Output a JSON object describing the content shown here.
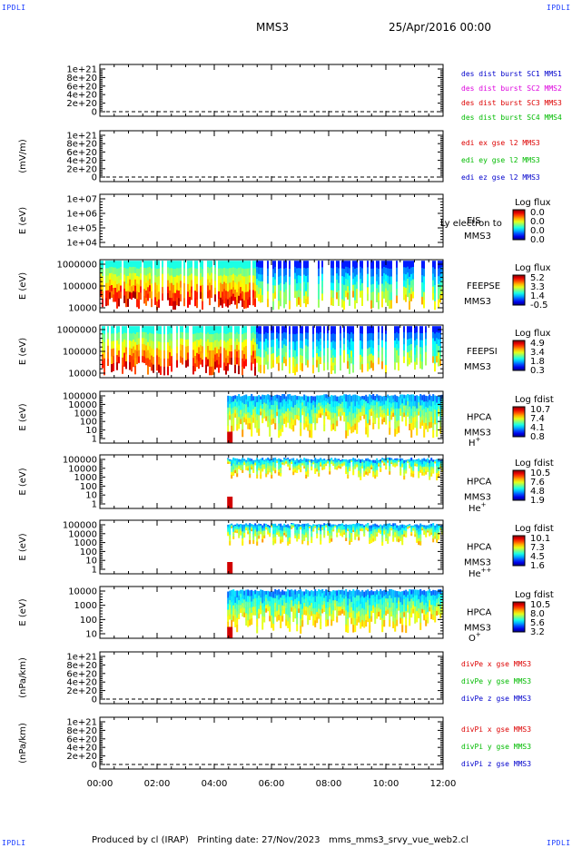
{
  "header": {
    "corner_label": "IPDLI",
    "mission": "MMS3",
    "date": "25/Apr/2016 00:00"
  },
  "footer": {
    "text": "Produced by cl (IRAP)   Printing date: 27/Nov/2023   mms_mms3_srvy_vue_web2.cl"
  },
  "colors": {
    "red": "#dd0000",
    "magenta": "#dd00dd",
    "green": "#00bb00",
    "blue": "#0000cc",
    "darkblue": "#000099"
  },
  "chart_data": [
    {
      "type": "line",
      "ylabel": "",
      "ticks": [
        "1e+21",
        "8e+20",
        "6e+20",
        "4e+20",
        "2e+20",
        "0"
      ],
      "legend": [
        {
          "text": "des dist burst SC1 MMS1",
          "color": "blue"
        },
        {
          "text": "des dist burst SC2 MMS2",
          "color": "magenta"
        },
        {
          "text": "des dist burst SC3 MMS3",
          "color": "red"
        },
        {
          "text": "des dist burst SC4 MMS4",
          "color": "green"
        }
      ]
    },
    {
      "type": "line",
      "ylabel": "(mV/m)",
      "ticks": [
        "1e+21",
        "8e+20",
        "6e+20",
        "4e+20",
        "2e+20",
        "0"
      ],
      "legend": [
        {
          "text": "edi ex gse l2 MMS3",
          "color": "red"
        },
        {
          "text": "edi ey gse l2 MMS3",
          "color": "green"
        },
        {
          "text": "edi ez gse l2 MMS3",
          "color": "blue"
        }
      ]
    },
    {
      "type": "heatmap",
      "ylabel": "E (eV)",
      "ticks": [
        "1e+07",
        "1e+06",
        "1e+05",
        "1e+04"
      ],
      "instrument": [
        "EIS",
        "MMS3"
      ],
      "overlay_text": "Ly electron to",
      "colorbar": {
        "title": "Log flux",
        "ticks": [
          "0.0",
          "0.0",
          "0.0",
          "0.0"
        ]
      },
      "onset_hour": 0,
      "empty": true
    },
    {
      "type": "heatmap",
      "ylabel": "E (eV)",
      "ticks": [
        "1000000",
        "100000",
        "10000"
      ],
      "instrument": [
        "FEEPSE",
        "MMS3"
      ],
      "colorbar": {
        "title": "Log flux",
        "ticks": [
          "5.2",
          "3.3",
          "1.4",
          "-0.5"
        ]
      },
      "onset_hour": 0,
      "empty": false
    },
    {
      "type": "heatmap",
      "ylabel": "E (eV)",
      "ticks": [
        "1000000",
        "100000",
        "10000"
      ],
      "instrument": [
        "FEEPSI",
        "MMS3"
      ],
      "colorbar": {
        "title": "Log flux",
        "ticks": [
          "4.9",
          "3.4",
          "1.8",
          "0.3"
        ]
      },
      "onset_hour": 0,
      "empty": false
    },
    {
      "type": "heatmap",
      "ylabel": "E (eV)",
      "ticks": [
        "100000",
        "10000",
        "1000",
        "100",
        "10",
        "1"
      ],
      "instrument": [
        "HPCA",
        "MMS3"
      ],
      "species": "H",
      "species_sup": "+",
      "colorbar": {
        "title": "Log fdist",
        "ticks": [
          "10.7",
          "7.4",
          "4.1",
          "0.8"
        ]
      },
      "onset_hour": 4.45,
      "empty": false
    },
    {
      "type": "heatmap",
      "ylabel": "E (eV)",
      "ticks": [
        "100000",
        "10000",
        "1000",
        "100",
        "10",
        "1"
      ],
      "instrument": [
        "HPCA",
        "MMS3"
      ],
      "species": "He",
      "species_sup": "+",
      "colorbar": {
        "title": "Log fdist",
        "ticks": [
          "10.5",
          "7.6",
          "4.8",
          "1.9"
        ]
      },
      "onset_hour": 4.45,
      "empty": false
    },
    {
      "type": "heatmap",
      "ylabel": "E (eV)",
      "ticks": [
        "100000",
        "10000",
        "1000",
        "100",
        "10",
        "1"
      ],
      "instrument": [
        "HPCA",
        "MMS3"
      ],
      "species": "He",
      "species_sup": "++",
      "colorbar": {
        "title": "Log fdist",
        "ticks": [
          "10.1",
          "7.3",
          "4.5",
          "1.6"
        ]
      },
      "onset_hour": 4.45,
      "empty": false
    },
    {
      "type": "heatmap",
      "ylabel": "E (eV)",
      "ticks": [
        "10000",
        "1000",
        "100",
        "10"
      ],
      "instrument": [
        "HPCA",
        "MMS3"
      ],
      "species": "O",
      "species_sup": "+",
      "colorbar": {
        "title": "Log fdist",
        "ticks": [
          "10.5",
          "8.0",
          "5.6",
          "3.2"
        ]
      },
      "onset_hour": 4.45,
      "empty": false
    },
    {
      "type": "line",
      "ylabel": "(nPa/km)",
      "ticks": [
        "1e+21",
        "8e+20",
        "6e+20",
        "4e+20",
        "2e+20",
        "0"
      ],
      "legend": [
        {
          "text": "divPe x gse MMS3",
          "color": "red"
        },
        {
          "text": "divPe y gse MMS3",
          "color": "green"
        },
        {
          "text": "divPe z gse MMS3",
          "color": "blue"
        }
      ]
    },
    {
      "type": "line",
      "ylabel": "(nPa/km)",
      "ticks": [
        "1e+21",
        "8e+20",
        "6e+20",
        "4e+20",
        "2e+20",
        "0"
      ],
      "legend": [
        {
          "text": "divPi x gse MMS3",
          "color": "red"
        },
        {
          "text": "divPi y gse MMS3",
          "color": "green"
        },
        {
          "text": "divPi z gse MMS3",
          "color": "blue"
        }
      ]
    }
  ],
  "xaxis": {
    "ticks": [
      "00:00",
      "02:00",
      "04:00",
      "06:00",
      "08:00",
      "10:00",
      "12:00"
    ],
    "range_hours": [
      0,
      12
    ]
  }
}
